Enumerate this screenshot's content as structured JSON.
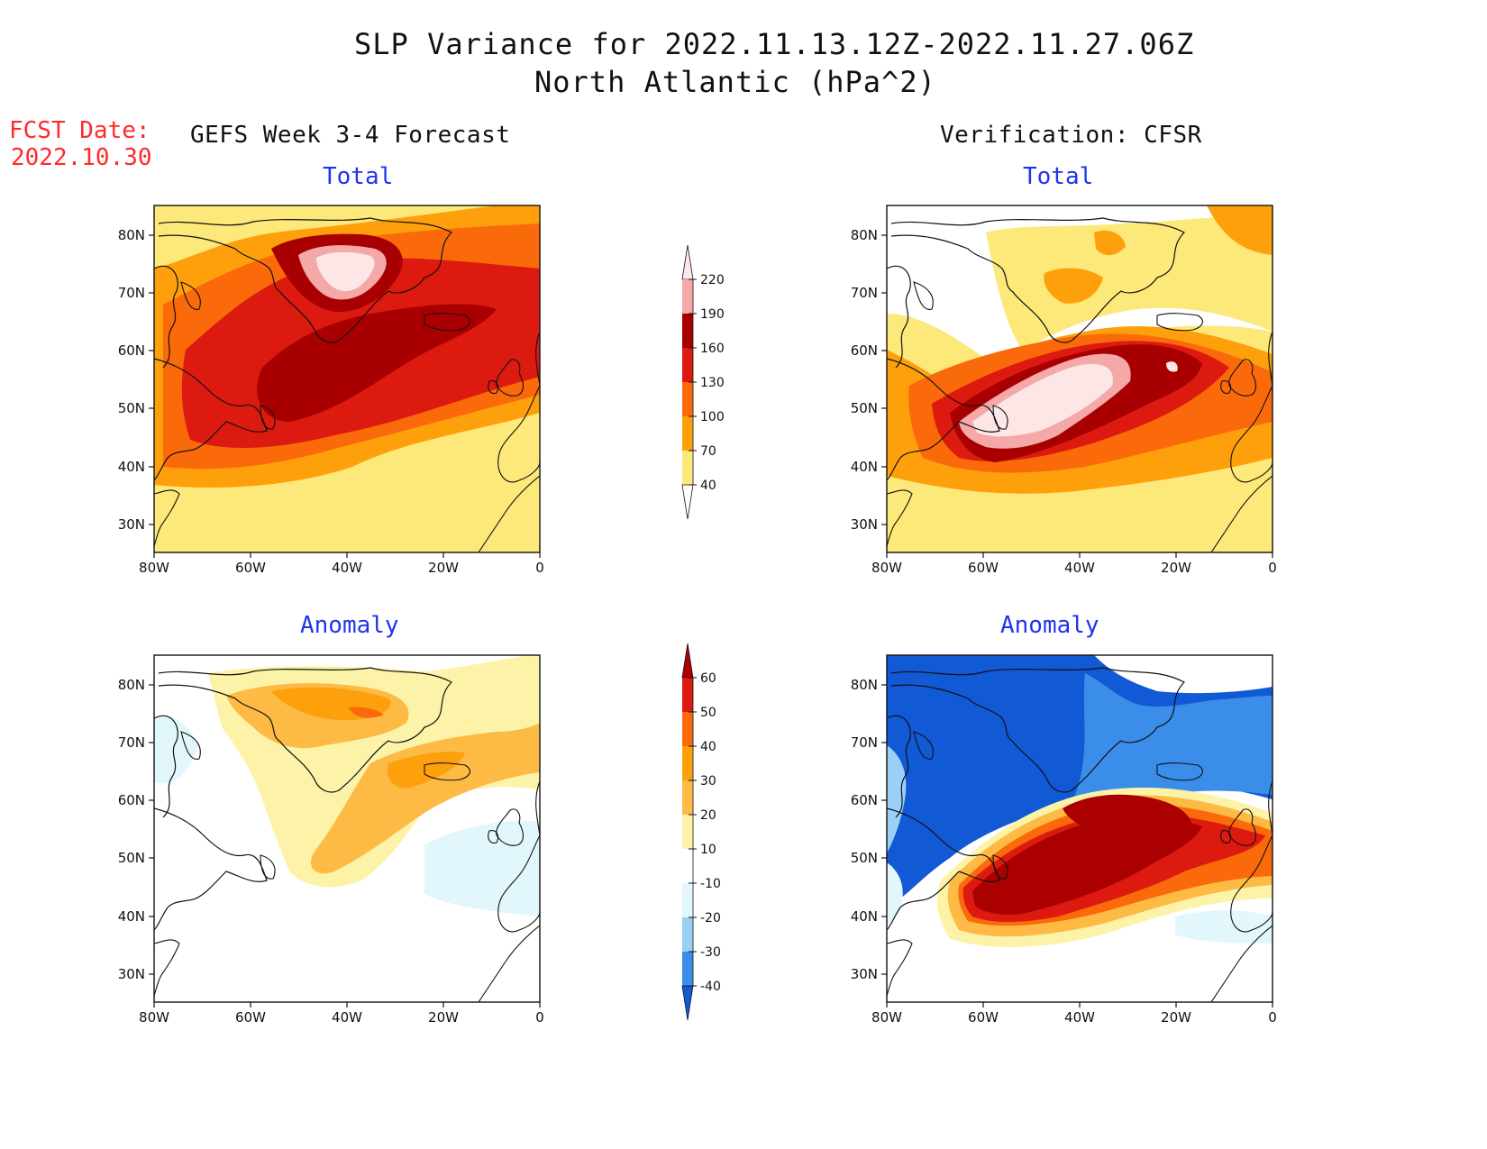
{
  "title": {
    "line1": "SLP Variance for 2022.11.13.12Z-2022.11.27.06Z",
    "line2": "North Atlantic (hPa^2)"
  },
  "fcst": {
    "line1": "FCST Date:",
    "line2": "2022.10.30"
  },
  "columns": {
    "left": "GEFS Week 3-4 Forecast",
    "right": "Verification: CFSR"
  },
  "panels": {
    "top_left": "Total",
    "top_right": "Total",
    "bottom_left": "Anomaly",
    "bottom_right": "Anomaly"
  },
  "axes": {
    "lat_labels": [
      "80N",
      "70N",
      "60N",
      "50N",
      "40N",
      "30N"
    ],
    "lon_labels": [
      "80W",
      "60W",
      "40W",
      "20W",
      "0"
    ]
  },
  "colorbars": {
    "total": {
      "labels": [
        "220",
        "190",
        "160",
        "130",
        "100",
        "70",
        "40"
      ],
      "colors": [
        "#fde6e6",
        "#f4a8a8",
        "#a80000",
        "#dd1a10",
        "#fa6a0a",
        "#fda00c",
        "#fde87a",
        "#ffffff"
      ]
    },
    "anomaly": {
      "labels": [
        "60",
        "50",
        "40",
        "30",
        "20",
        "10",
        "-10",
        "-20",
        "-30",
        "-40"
      ],
      "colors": [
        "#aa0000",
        "#dd1a10",
        "#fa6a0a",
        "#fda00c",
        "#fdbb45",
        "#fdf3a8",
        "#ffffff",
        "#e1f7fc",
        "#9ad0f5",
        "#3a8ee9",
        "#1259d6"
      ]
    }
  }
}
